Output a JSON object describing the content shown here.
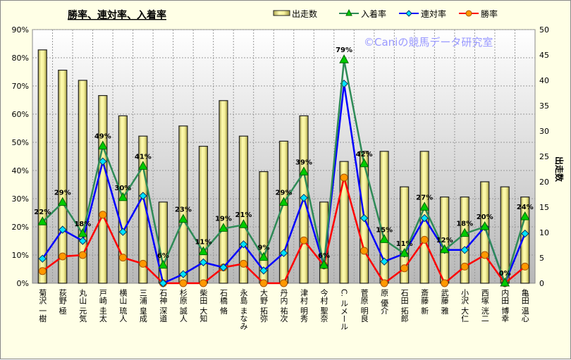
{
  "chart_data": {
    "type": "bar+line",
    "title": "勝率、連対率、入着率",
    "watermark": "©Caniの競馬データ研究室",
    "ylabel_right": "出走数",
    "ylim_left": [
      0,
      90
    ],
    "ylim_right": [
      0,
      50
    ],
    "yticks_left": [
      "0%",
      "10%",
      "20%",
      "30%",
      "40%",
      "50%",
      "60%",
      "70%",
      "80%",
      "90%"
    ],
    "yticks_right": [
      "0",
      "5",
      "10",
      "15",
      "20",
      "25",
      "30",
      "35",
      "40",
      "45",
      "50"
    ],
    "legend": [
      "出走数",
      "入着率",
      "連対率",
      "勝率"
    ],
    "legend_position": "top-right",
    "colors": {
      "bar": "#f5f09a",
      "place": "#2e8b57",
      "place_marker": "#00cc00",
      "quinella": "#0000ff",
      "quinella_marker": "#00e5ff",
      "win": "#ff0000",
      "win_marker": "#ff9900"
    },
    "categories": [
      "菊沢 一樹",
      "荻野 極",
      "丸山 元気",
      "戸崎 圭太",
      "横山 琉人",
      "三浦 皇成",
      "石神 深道",
      "杉原 誠人",
      "柴田 大知",
      "石橋 脩",
      "永島 まなみ",
      "大野 拓弥",
      "丹内 祐次",
      "津村 明秀",
      "今村 聖奈",
      "C. ルメール",
      "菅原 明良",
      "原 優介",
      "石田 拓郎",
      "斎藤 新",
      "武藤 雅",
      "小沢 大仁",
      "西塚 洸二",
      "内田 博幸",
      "亀田 温心"
    ],
    "series": [
      {
        "name": "出走数",
        "axis": "right",
        "values": [
          46,
          42,
          40,
          37,
          33,
          29,
          16,
          31,
          27,
          36,
          29,
          22,
          28,
          33,
          16,
          24,
          26,
          26,
          19,
          26,
          17,
          17,
          20,
          19,
          17
        ]
      },
      {
        "name": "入着率",
        "axis": "left",
        "values": [
          21.7,
          28.6,
          17.5,
          48.6,
          30.3,
          41.4,
          6.3,
          22.6,
          11.1,
          19.4,
          20.7,
          9.1,
          28.6,
          39.4,
          6.3,
          79.2,
          42.3,
          15.4,
          10.5,
          26.9,
          11.8,
          17.6,
          20.0,
          0,
          23.5
        ]
      },
      {
        "name": "連対率",
        "axis": "left",
        "values": [
          8.7,
          19.0,
          15.0,
          43.2,
          18.2,
          31.0,
          0,
          3.2,
          7.4,
          5.6,
          13.8,
          4.5,
          10.7,
          30.3,
          6.3,
          70.8,
          23.1,
          7.7,
          10.5,
          23.1,
          11.8,
          11.8,
          20.0,
          0,
          17.6
        ]
      },
      {
        "name": "勝率",
        "axis": "left",
        "values": [
          4.3,
          9.5,
          10.0,
          24.3,
          9.1,
          6.9,
          0,
          0,
          0,
          5.6,
          6.9,
          0,
          0,
          15.2,
          6.3,
          37.5,
          11.5,
          0,
          5.3,
          15.4,
          0,
          5.9,
          10.0,
          0,
          5.9
        ]
      }
    ],
    "data_labels": [
      "22%",
      "29%",
      "18%",
      "49%",
      "30%",
      "41%",
      "6%",
      "23%",
      "11%",
      "19%",
      "21%",
      "9%",
      "29%",
      "39%",
      "6%",
      "79%",
      "42%",
      "15%",
      "11%",
      "27%",
      "12%",
      "18%",
      "20%",
      "0%",
      "24%"
    ]
  }
}
